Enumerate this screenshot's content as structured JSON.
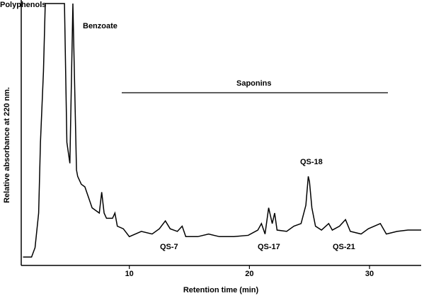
{
  "chart_data": {
    "type": "line",
    "x_label": "Retention time (min)",
    "y_label": "Relative absorbance at 220 nm.",
    "annotations": [
      "Polyphenols",
      "Benzoate",
      "Saponins",
      "QS-7",
      "QS-17",
      "QS-18",
      "QS-21"
    ],
    "xlim": [
      1,
      34.3
    ],
    "xticks": [
      10,
      20,
      30
    ],
    "ylim": [
      0,
      100
    ],
    "series": [
      {
        "color": "#000000",
        "x": [
          1.15,
          1.86,
          2.15,
          2.45,
          2.6,
          2.85,
          3.0,
          4.6,
          4.8,
          5.05,
          5.3,
          5.6,
          5.7,
          6.0,
          6.3,
          6.6,
          6.9,
          7.5,
          7.7,
          7.9,
          8.1,
          8.6,
          8.8,
          9.0,
          9.5,
          10,
          11,
          11.9,
          12.5,
          13,
          13.4,
          14,
          14.4,
          14.7,
          15.7,
          16.6,
          17.5,
          18.7,
          19.9,
          20.7,
          21,
          21.3,
          21.6,
          21.9,
          22.1,
          22.3,
          23.1,
          23.7,
          24.3,
          24.7,
          24.9,
          25.0,
          25.2,
          25.5,
          26.0,
          26.6,
          26.9,
          27.5,
          28.0,
          28.4,
          29.3,
          29.9,
          30.9,
          31.4,
          32.3,
          33.2,
          34.3
        ],
        "values": [
          3.2,
          3.2,
          6.8,
          20,
          47,
          74,
          100,
          100,
          47,
          39,
          100,
          36.5,
          34,
          31,
          30,
          26,
          22,
          20,
          28,
          20,
          18,
          18,
          20,
          15,
          14,
          11,
          13,
          12,
          14,
          17,
          14,
          13,
          15,
          11,
          11,
          12,
          11,
          11,
          11.5,
          13.5,
          16,
          12,
          22,
          16,
          20,
          13.5,
          13,
          15,
          16,
          23,
          34,
          32,
          22,
          15,
          13.5,
          16,
          13.5,
          15,
          17.5,
          13,
          12,
          14,
          16,
          12,
          13,
          13.5,
          13.5
        ]
      }
    ]
  }
}
